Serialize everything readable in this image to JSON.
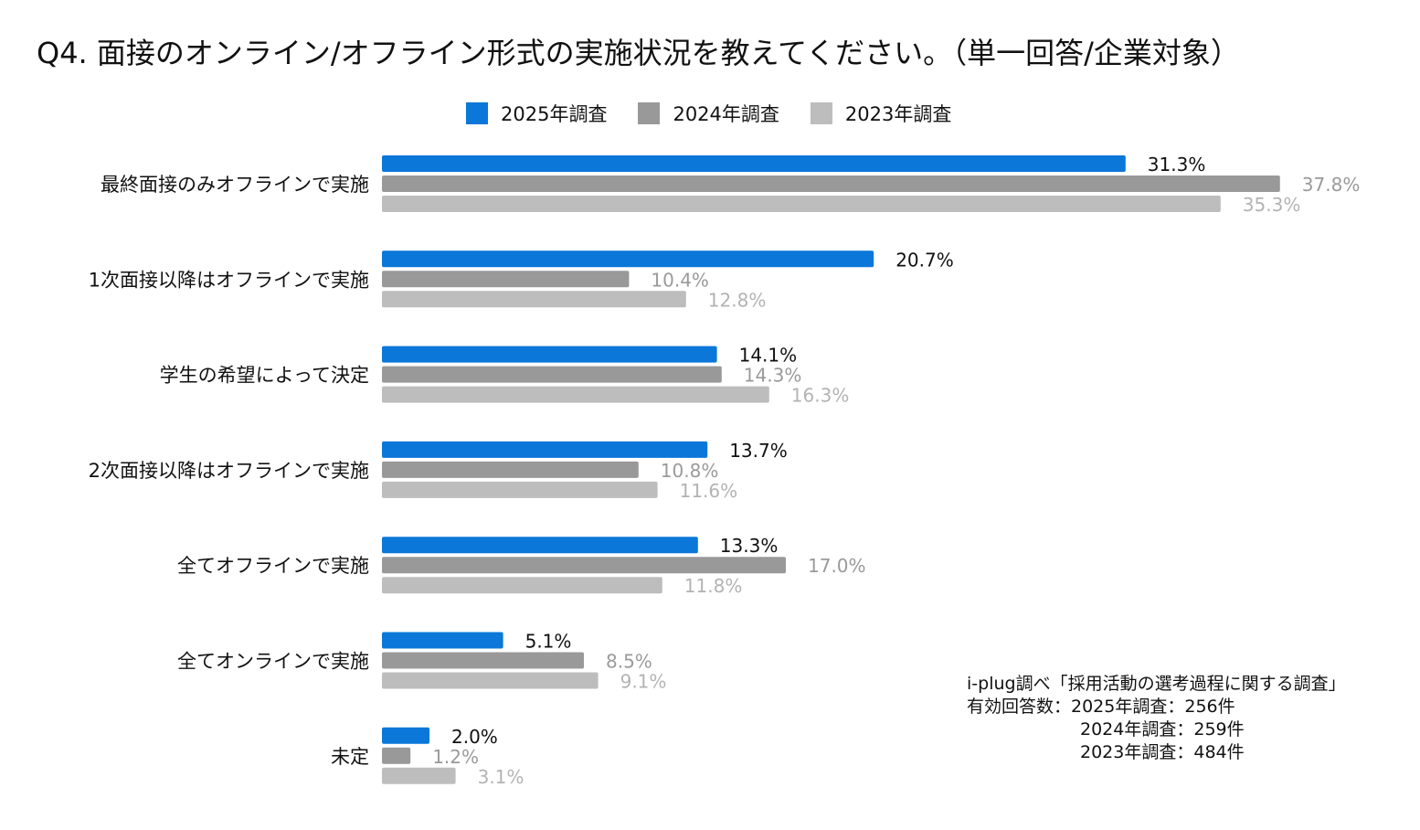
{
  "title": "Q4. 面接のオンライン/オフライン形式の実施状況を教えてください。（単一回答/企業対象）",
  "chart_data": {
    "type": "bar",
    "orientation": "horizontal",
    "title": "Q4. 面接のオンライン/オフライン形式の実施状況を教えてください。（単一回答/企業対象）",
    "categories": [
      "最終面接のみオフラインで実施",
      "1次面接以降はオフラインで実施",
      "学生の希望によって決定",
      "2次面接以降はオフラインで実施",
      "全てオフラインで実施",
      "全てオンラインで実施",
      "未定"
    ],
    "series": [
      {
        "name": "2025年調査",
        "color": "#0a77d9",
        "label_color": "#111111",
        "values": [
          31.3,
          20.7,
          14.1,
          13.7,
          13.3,
          5.1,
          2.0
        ]
      },
      {
        "name": "2024年調査",
        "color": "#999999",
        "label_color": "#9a9a9a",
        "values": [
          37.8,
          10.4,
          14.3,
          10.8,
          17.0,
          8.5,
          1.2
        ]
      },
      {
        "name": "2023年調査",
        "color": "#bdbdbd",
        "label_color": "#b3b3b3",
        "values": [
          35.3,
          12.8,
          16.3,
          11.6,
          11.8,
          9.1,
          3.1
        ]
      }
    ],
    "value_suffix": "%",
    "xlim": [
      0,
      40
    ],
    "legend_position": "top-center",
    "grid": false
  },
  "note": {
    "line1": "i-plug調べ「採用活動の選考過程に関する調査」",
    "line2": "有効回答数：2025年調査：256件",
    "line3": "2024年調査：259件",
    "line4": "2023年調査：484件"
  }
}
